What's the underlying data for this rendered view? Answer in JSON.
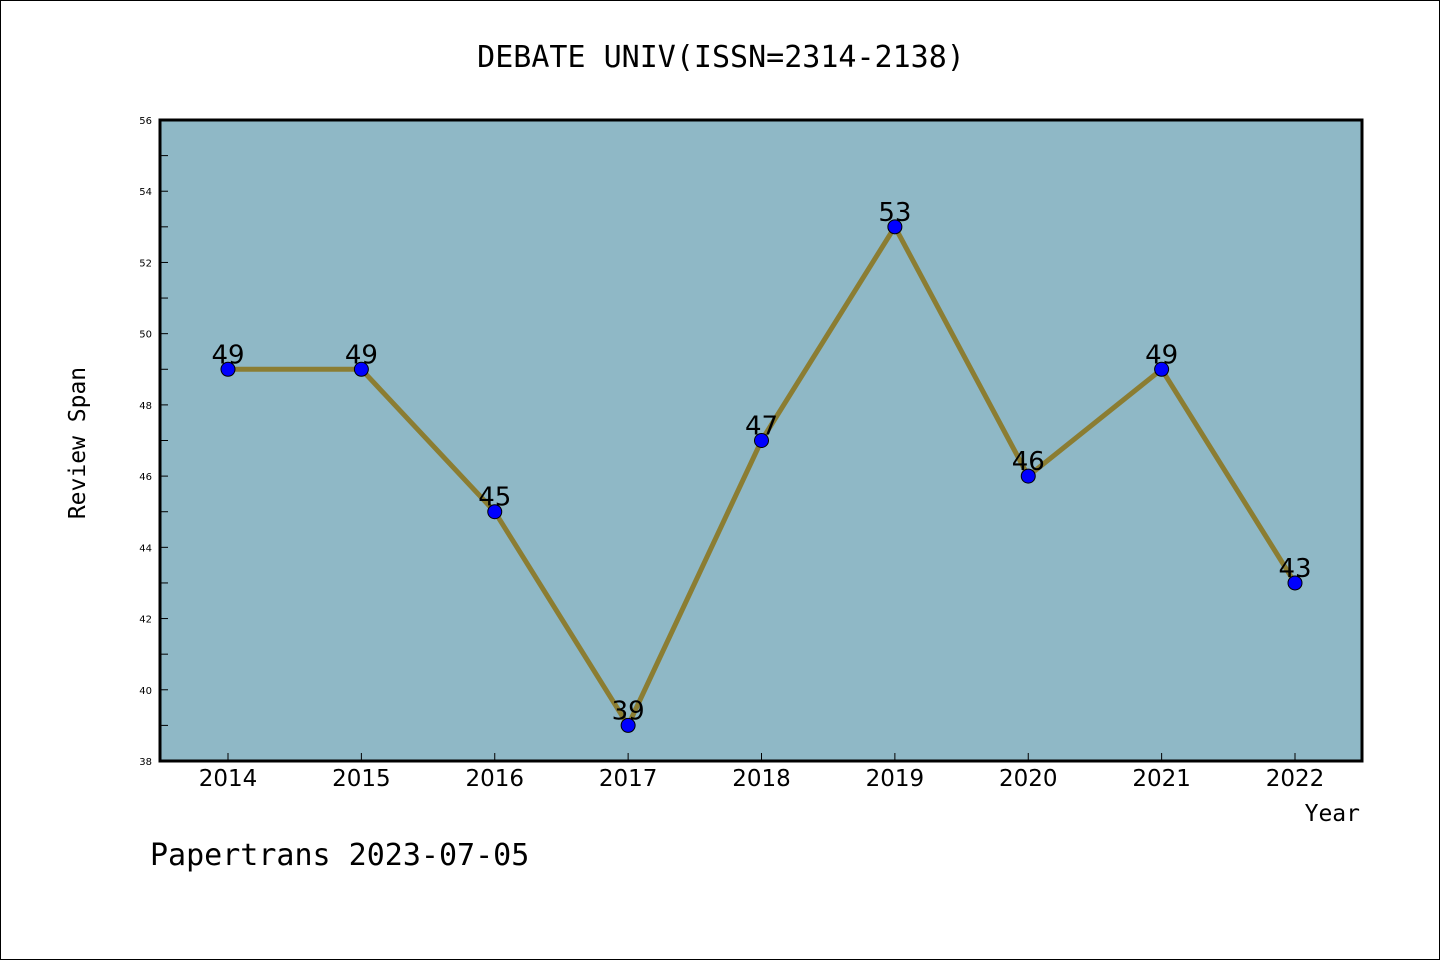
{
  "chart_data": {
    "type": "line",
    "title": "DEBATE UNIV(ISSN=2314-2138)",
    "xlabel": "Year",
    "ylabel": "Review Span",
    "x": [
      2014,
      2015,
      2016,
      2017,
      2018,
      2019,
      2020,
      2021,
      2022
    ],
    "categories": [
      "2014",
      "2015",
      "2016",
      "2017",
      "2018",
      "2019",
      "2020",
      "2021",
      "2022"
    ],
    "series": [
      {
        "values": [
          49,
          49,
          45,
          39,
          47,
          53,
          46,
          49,
          43
        ]
      }
    ],
    "data_labels": [
      "49",
      "49",
      "45",
      "39",
      "47",
      "53",
      "46",
      "49",
      "43"
    ],
    "ylim": [
      38,
      56
    ],
    "yticks": [
      38,
      40,
      42,
      44,
      46,
      48,
      50,
      52,
      54,
      56
    ],
    "ytick_labels": [
      "38",
      "40",
      "42",
      "44",
      "46",
      "48",
      "50",
      "52",
      "54",
      "56"
    ],
    "grid": false,
    "legend": "none",
    "colors": {
      "plot_background": "#8fb8c6",
      "line": "#8b7d32",
      "marker": "#0000ff"
    }
  },
  "footer": {
    "text": "Papertrans 2023-07-05"
  }
}
